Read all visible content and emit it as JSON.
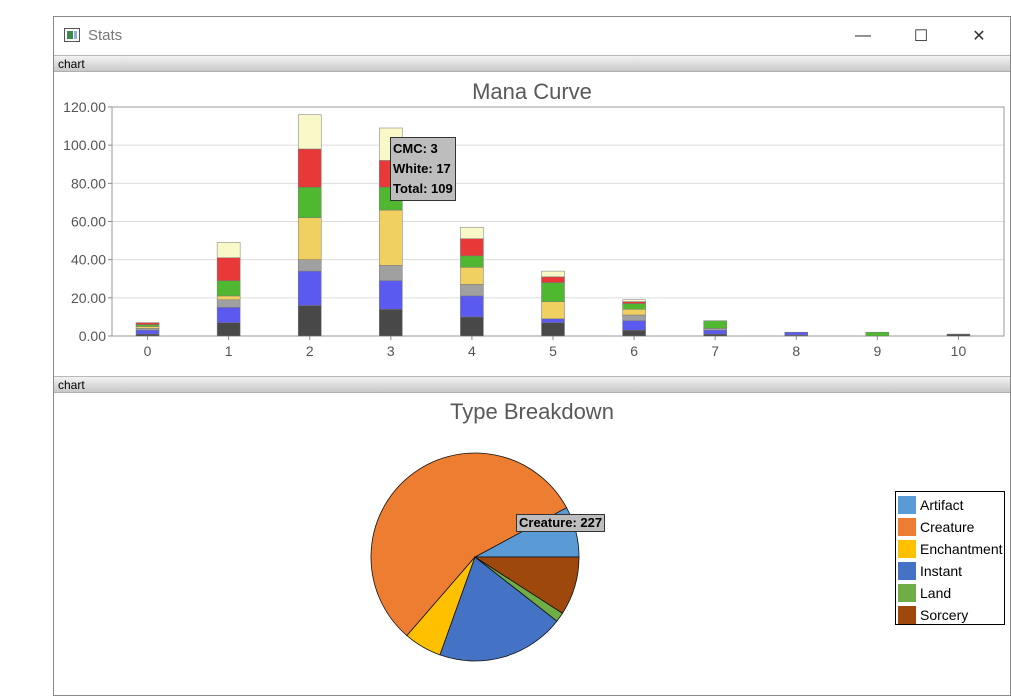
{
  "window": {
    "title": "Stats",
    "minimize_glyph": "—",
    "maximize_glyph": "☐",
    "close_glyph": "✕"
  },
  "panels": [
    {
      "label": "chart"
    },
    {
      "label": "chart"
    }
  ],
  "colors": {
    "dark": "#484848",
    "blue": "#5a5af0",
    "gray": "#a0a0a0",
    "gold": "#f0d060",
    "green": "#50b830",
    "red": "#e83838",
    "white": "#f8f8c8"
  },
  "chart_data": [
    {
      "type": "bar",
      "stacked": true,
      "title": "Mana Curve",
      "categories": [
        "0",
        "1",
        "2",
        "3",
        "4",
        "5",
        "6",
        "7",
        "8",
        "9",
        "10"
      ],
      "ylim": [
        0,
        120
      ],
      "yticks": [
        "0.00",
        "20.00",
        "40.00",
        "60.00",
        "80.00",
        "100.00",
        "120.00"
      ],
      "grid": true,
      "series": [
        {
          "color": "#484848",
          "values": [
            1,
            7,
            16,
            14,
            10,
            7,
            3,
            1,
            0.5,
            0,
            1
          ]
        },
        {
          "color": "#5a5af0",
          "values": [
            2,
            8,
            18,
            15,
            11,
            2,
            5,
            2,
            1.5,
            0,
            0
          ]
        },
        {
          "color": "#a0a0a0",
          "values": [
            1,
            4,
            6,
            8,
            6,
            0,
            3,
            1,
            0,
            0,
            0
          ]
        },
        {
          "color": "#f0d060",
          "values": [
            1,
            2,
            22,
            29,
            9,
            9,
            3,
            0,
            0,
            0,
            0
          ]
        },
        {
          "color": "#50b830",
          "values": [
            1,
            8,
            16,
            12,
            6,
            10,
            3,
            4,
            0,
            2,
            0
          ]
        },
        {
          "color": "#e83838",
          "values": [
            1,
            12,
            20,
            14,
            9,
            3,
            1,
            0,
            0,
            0,
            0
          ]
        },
        {
          "color": "#f8f8c8",
          "values": [
            0,
            8,
            18,
            17,
            6,
            3,
            1,
            0,
            0,
            0,
            0
          ]
        }
      ],
      "tooltip": {
        "cmc": "CMC: 3",
        "white": "White: 17",
        "total": "Total: 109"
      }
    },
    {
      "type": "pie",
      "title": "Type Breakdown",
      "slices": [
        {
          "label": "Artifact",
          "value": 32,
          "color": "#5b9bd5"
        },
        {
          "label": "Creature",
          "value": 227,
          "color": "#ed7d31"
        },
        {
          "label": "Enchantment",
          "value": 24,
          "color": "#ffc000"
        },
        {
          "label": "Instant",
          "value": 81,
          "color": "#4472c4"
        },
        {
          "label": "Land",
          "value": 6,
          "color": "#70ad47"
        },
        {
          "label": "Sorcery",
          "value": 37,
          "color": "#9e480e"
        }
      ],
      "tooltip": "Creature: 227"
    }
  ]
}
